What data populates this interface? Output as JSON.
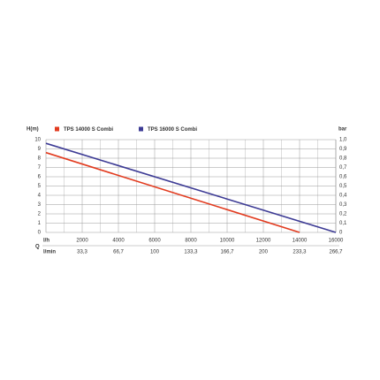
{
  "chart_data": {
    "type": "line",
    "y_label": "H(m)",
    "y2_label": "bar",
    "x_label": "Q",
    "x_unit": "l/h",
    "x2_unit": "l/min",
    "series": [
      {
        "name": "TPS 14000 S Combi",
        "color": "#e23b1f",
        "x": [
          0,
          14000
        ],
        "values": [
          8.6,
          0
        ]
      },
      {
        "name": "TPS 16000 S Combi",
        "color": "#3d3b95",
        "x": [
          0,
          16000
        ],
        "values": [
          9.6,
          0
        ]
      }
    ],
    "xlim": [
      0,
      16000
    ],
    "xticks": [
      2000,
      4000,
      6000,
      8000,
      10000,
      12000,
      14000,
      16000
    ],
    "x2lim": [
      0,
      266.7
    ],
    "x2ticks": [
      {
        "value": 33.3,
        "label": "33,3"
      },
      {
        "value": 66.7,
        "label": "66,7"
      },
      100,
      {
        "value": 133.3,
        "label": "133,3"
      },
      {
        "value": 166.7,
        "label": "166,7"
      },
      200,
      {
        "value": 233.3,
        "label": "233,3"
      },
      {
        "value": 266.7,
        "label": "266,7"
      }
    ],
    "ylim": [
      0,
      10
    ],
    "yticks": [
      0,
      1,
      2,
      3,
      4,
      5,
      6,
      7,
      8,
      9,
      10
    ],
    "y2lim": [
      0,
      1
    ],
    "y2ticks": [
      0,
      {
        "value": 0.1,
        "label": "0,1"
      },
      {
        "value": 0.2,
        "label": "0,2"
      },
      {
        "value": 0.3,
        "label": "0,3"
      },
      {
        "value": 0.4,
        "label": "0,4"
      },
      {
        "value": 0.5,
        "label": "0,5"
      },
      {
        "value": 0.6,
        "label": "0,6"
      },
      {
        "value": 0.7,
        "label": "0,7"
      },
      {
        "value": 0.8,
        "label": "0,8"
      },
      {
        "value": 0.9,
        "label": "0,9"
      },
      {
        "value": 1,
        "label": "1,0"
      }
    ],
    "grid": true
  }
}
